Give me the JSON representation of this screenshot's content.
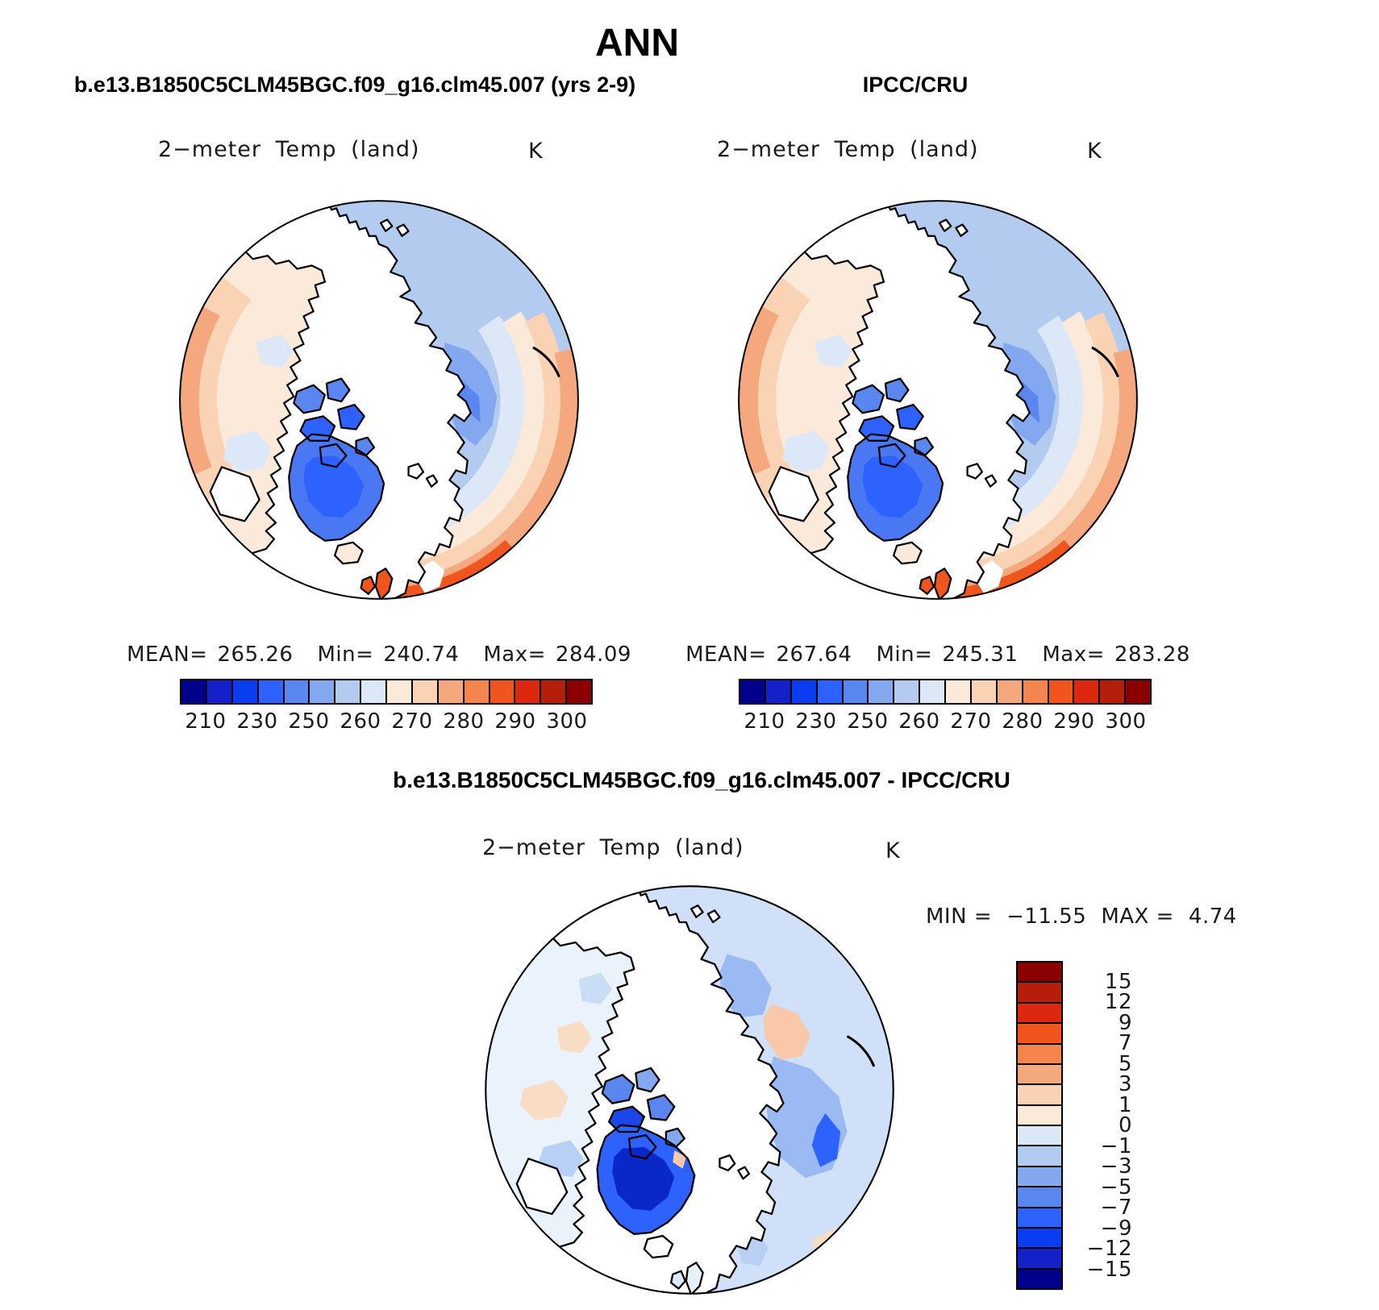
{
  "title": "ANN",
  "header": {
    "left_subtitle": "b.e13.B1850C5CLM45BGC.f09_g16.clm45.007 (yrs 2-9)",
    "right_subtitle": "IPCC/CRU",
    "diff_subtitle": "b.e13.B1850C5CLM45BGC.f09_g16.clm45.007 - IPCC/CRU"
  },
  "panels": {
    "model": {
      "map_label": "2−meter Temp (land)",
      "unit": "K",
      "mean_label": "MEAN=",
      "mean": "265.26",
      "min_label": "Min=",
      "min": "240.74",
      "max_label": "Max=",
      "max": "284.09"
    },
    "obs": {
      "map_label": "2−meter Temp (land)",
      "unit": "K",
      "mean_label": "MEAN=",
      "mean": "267.64",
      "min_label": "Min=",
      "min": "245.31",
      "max_label": "Max=",
      "max": "283.28"
    },
    "diff": {
      "map_label": "2−meter Temp (land)",
      "unit": "K",
      "min_label": "MIN  =",
      "min": "−11.55",
      "max_label": "MAX  =",
      "max": "4.74"
    }
  },
  "colorbar": {
    "palette": [
      "#00008B",
      "#1420C8",
      "#0A3CF0",
      "#2E62FF",
      "#5A86F0",
      "#84A8F0",
      "#B4CBF0",
      "#DCE8F7",
      "#FBE9D9",
      "#FAD2B4",
      "#F5A87D",
      "#F5854E",
      "#F0551E",
      "#DC280F",
      "#B41E0A",
      "#8B0000"
    ],
    "tick_labels": [
      "210",
      "230",
      "250",
      "260",
      "270",
      "280",
      "290",
      "300"
    ],
    "tick_positions": [
      1,
      3,
      5,
      7,
      9,
      11,
      13,
      15
    ]
  },
  "diff_colorbar": {
    "palette": [
      "#8B0000",
      "#B41E0A",
      "#DC280F",
      "#F0551E",
      "#F5854E",
      "#F5A87D",
      "#FAD2B4",
      "#FBE9D9",
      "#DCE8F7",
      "#B4CBF0",
      "#84A8F0",
      "#5A86F0",
      "#2E62FF",
      "#0A3CF0",
      "#1420C8",
      "#00008B"
    ],
    "tick_labels": [
      "15",
      "12",
      "9",
      "7",
      "5",
      "3",
      "1",
      "0",
      "−1",
      "−3",
      "−5",
      "−7",
      "−9",
      "−12",
      "−15"
    ]
  },
  "chart_data": {
    "type": "heatmap",
    "title": "ANN",
    "variable": "2-meter Temp (land)",
    "units": "K",
    "projection": "north polar stereographic",
    "panels": [
      {
        "name": "b.e13.B1850C5CLM45BGC.f09_g16.clm45.007 (yrs 2-9)",
        "role": "model",
        "mean": 265.26,
        "min": 240.74,
        "max": 284.09
      },
      {
        "name": "IPCC/CRU",
        "role": "observations",
        "mean": 267.64,
        "min": 245.31,
        "max": 283.28
      },
      {
        "name": "b.e13.B1850C5CLM45BGC.f09_g16.clm45.007 - IPCC/CRU",
        "role": "difference",
        "min": -11.55,
        "max": 4.74
      }
    ],
    "levels_K": [
      210,
      220,
      230,
      240,
      250,
      255,
      260,
      265,
      270,
      275,
      280,
      285,
      290,
      295,
      300
    ],
    "diff_levels_K": [
      15,
      12,
      9,
      7,
      5,
      3,
      1,
      0,
      -1,
      -3,
      -5,
      -7,
      -9,
      -12,
      -15
    ],
    "legend_position": "horizontal labelbar below each top panel; vertical labelbar right of difference panel"
  }
}
